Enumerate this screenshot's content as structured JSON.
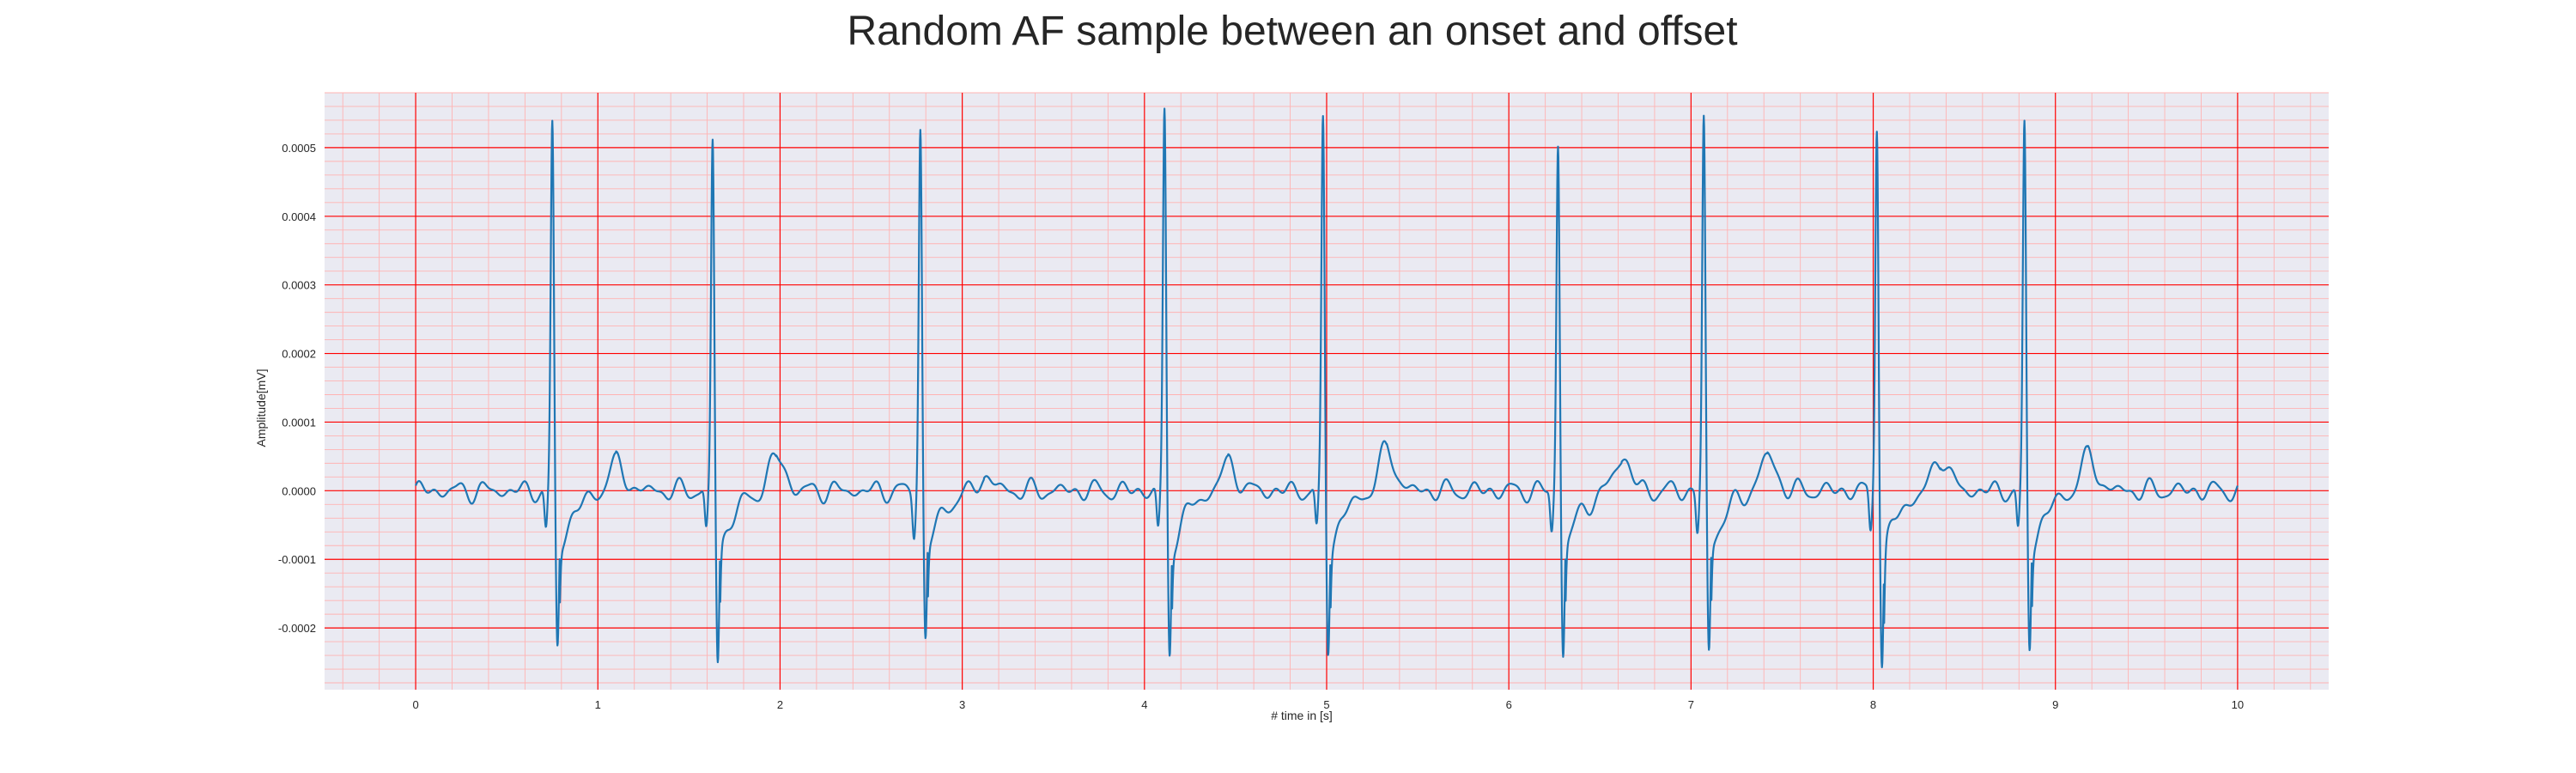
{
  "chart_data": {
    "type": "line",
    "title": "Random AF sample between an onset and offset",
    "xlabel": "# time in [s]",
    "ylabel": "Amplitude[mV]",
    "xlim": [
      -0.5,
      10.5
    ],
    "ylim": [
      -0.00029,
      0.00058
    ],
    "x_ticks": [
      "0",
      "1",
      "2",
      "3",
      "4",
      "5",
      "6",
      "7",
      "8",
      "9",
      "10"
    ],
    "y_ticks": [
      "-0.0002",
      "-0.0001",
      "0.0000",
      "0.0001",
      "0.0002",
      "0.0003",
      "0.0004",
      "0.0005"
    ],
    "grid": true,
    "background_color": "#eaeaf2",
    "major_grid_color": "#ff0000",
    "minor_grid_color": "#ffb3b3",
    "line_color": "#1f77b4",
    "series": [
      {
        "beat_times": [
          0.75,
          1.63,
          2.77,
          4.11,
          4.98,
          6.27,
          7.07,
          8.02,
          8.83
        ],
        "r_peaks": [
          0.00053,
          0.00051,
          0.00053,
          0.00055,
          0.00054,
          0.00051,
          0.00054,
          0.00054,
          0.00053
        ],
        "s_troughs": [
          -0.00023,
          -0.00025,
          -0.00022,
          -0.00024,
          -0.00023,
          -0.00024,
          -0.00024,
          -0.00025,
          -0.00023
        ],
        "t_wave_peaks": [
          4e-05,
          5e-05,
          2e-05,
          4e-05,
          6e-05,
          5e-05,
          5e-05,
          5e-05,
          5e-05
        ],
        "x_range": [
          0,
          10
        ],
        "baseline": 0.0
      }
    ]
  }
}
